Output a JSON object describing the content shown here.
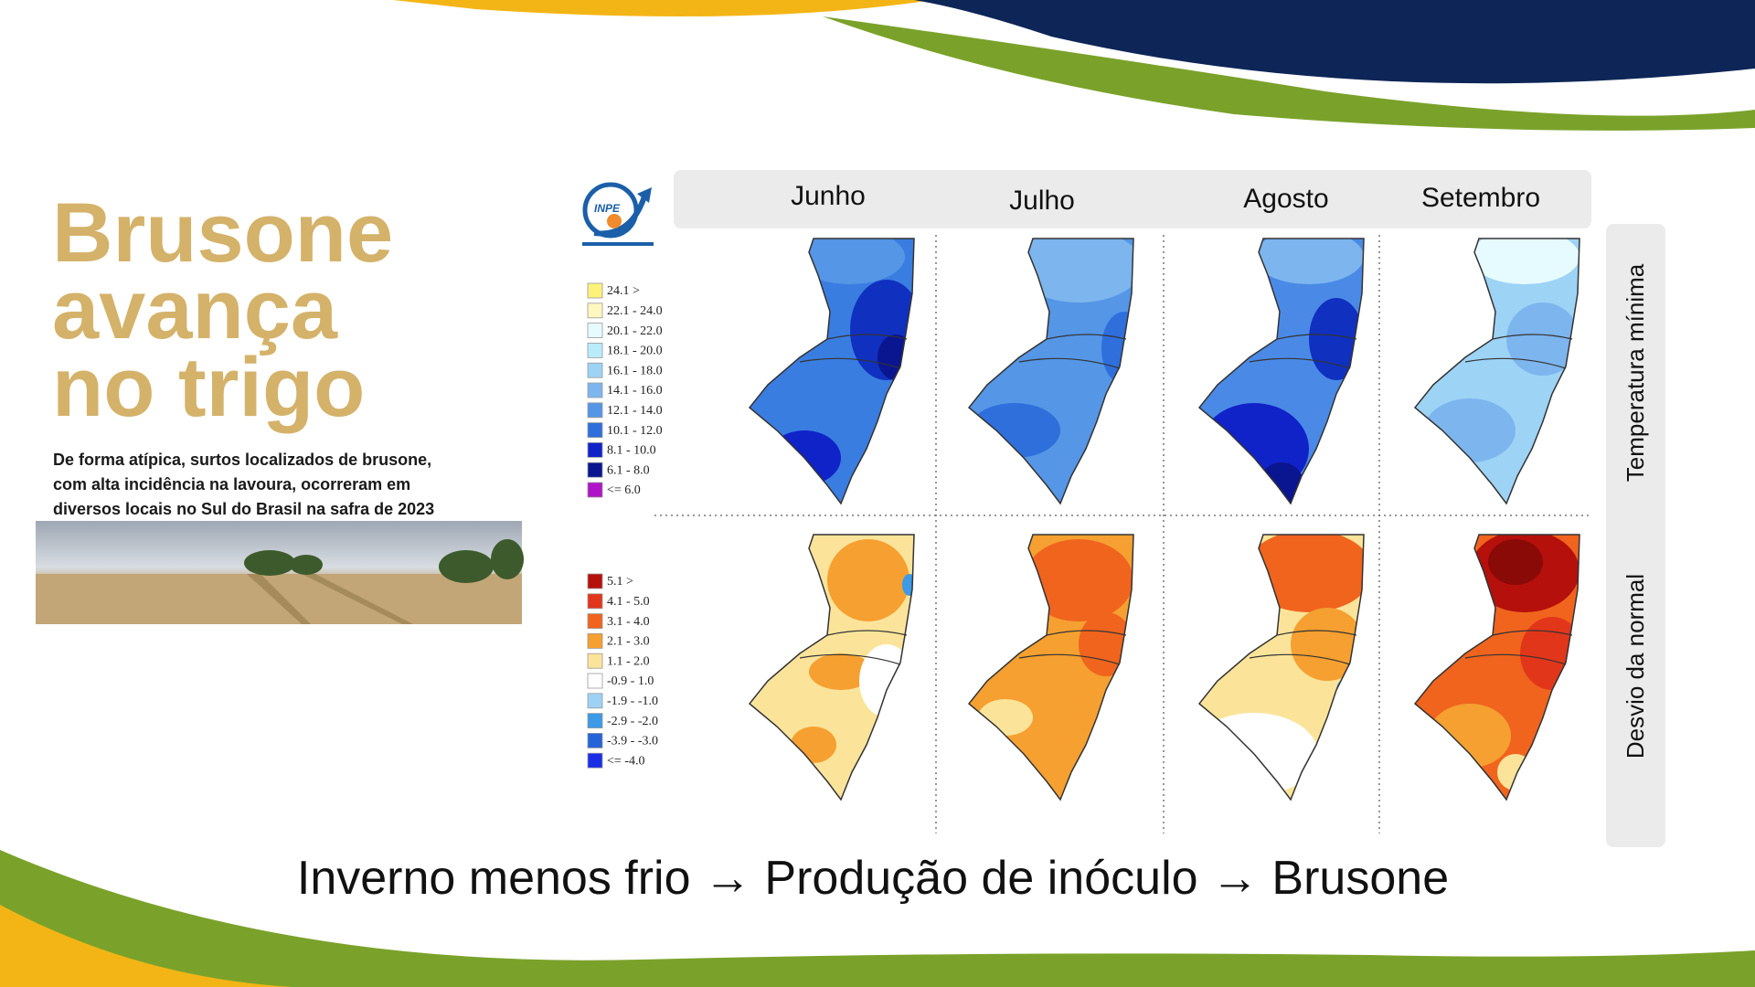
{
  "headline": [
    "Brusone",
    "avança",
    "no trigo"
  ],
  "subtitle": [
    "De forma atípica, surtos localizados de brusone,",
    "com alta incidência na lavoura, ocorreram em",
    "diversos locais no Sul do Brasil na safra de 2023"
  ],
  "logo_text": "INPE",
  "months": [
    "Junho",
    "Julho",
    "Agosto",
    "Setembro"
  ],
  "row_labels": [
    "Temperatura mínima",
    "Desvio da normal"
  ],
  "legend_temperature": [
    {
      "label": "24.1 >",
      "color": "#fff27a"
    },
    {
      "label": "22.1 - 24.0",
      "color": "#fff7c0"
    },
    {
      "label": "20.1 - 22.0",
      "color": "#e6fbff"
    },
    {
      "label": "18.1 - 20.0",
      "color": "#b9ecfb"
    },
    {
      "label": "16.1 - 18.0",
      "color": "#9dd3f5"
    },
    {
      "label": "14.1 - 16.0",
      "color": "#7db5ee"
    },
    {
      "label": "12.1 - 14.0",
      "color": "#5596e6"
    },
    {
      "label": "10.1 - 12.0",
      "color": "#2e6fdc"
    },
    {
      "label": "8.1 - 10.0",
      "color": "#1023c8"
    },
    {
      "label": "6.1 - 8.0",
      "color": "#0a1590"
    },
    {
      "label": "<= 6.0",
      "color": "#b014c8"
    }
  ],
  "legend_deviation": [
    {
      "label": "5.1 >",
      "color": "#b5100c"
    },
    {
      "label": "4.1 - 5.0",
      "color": "#e2361a"
    },
    {
      "label": "3.1 - 4.0",
      "color": "#f0641e"
    },
    {
      "label": "2.1 - 3.0",
      "color": "#f5a030"
    },
    {
      "label": "1.1 - 2.0",
      "color": "#fbe49a"
    },
    {
      "label": "-0.9 - 1.0",
      "color": "#ffffff"
    },
    {
      "label": "-1.9 - -1.0",
      "color": "#9ed2f5"
    },
    {
      "label": "-2.9 - -2.0",
      "color": "#3c9ae6"
    },
    {
      "label": "-3.9 - -3.0",
      "color": "#2464d8"
    },
    {
      "label": "<= -4.0",
      "color": "#1a2ee6"
    }
  ],
  "caption": "Inverno menos frio → Produção de inóculo → Brusone"
}
